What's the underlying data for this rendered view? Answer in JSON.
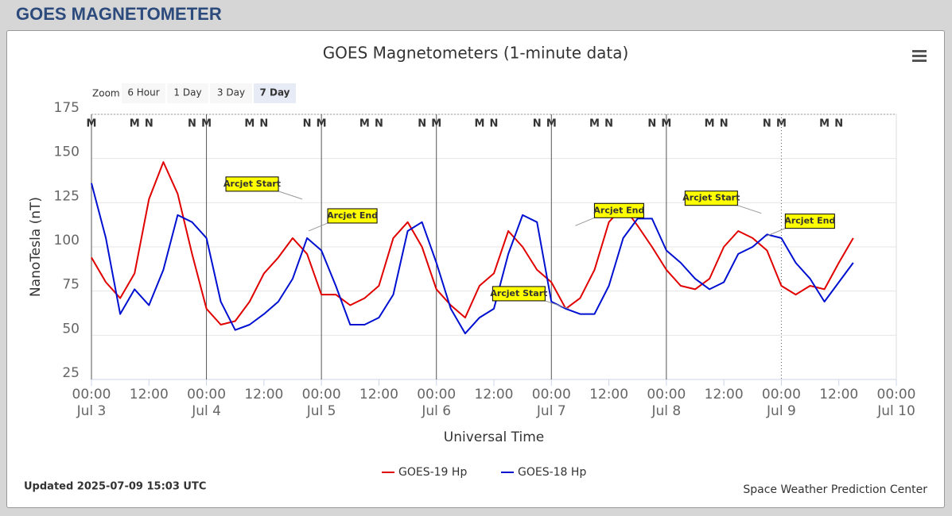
{
  "header": {
    "title": "GOES MAGNETOMETER"
  },
  "chart_data": {
    "type": "line",
    "title": "GOES Magnetometers (1-minute data)",
    "zoom": {
      "label": "Zoom",
      "buttons": [
        "6 Hour",
        "1 Day",
        "3 Day",
        "7 Day"
      ],
      "selected": 3
    },
    "y_label": "NanoTesla (nT)",
    "x_label": "Universal Time",
    "ylim": [
      25,
      175
    ],
    "yticks": [
      25,
      50,
      75,
      100,
      125,
      150,
      175
    ],
    "grid": true,
    "xlim": [
      "Jul 3 00:00",
      "Jul 10 00:00"
    ],
    "xticks": [
      {
        "value": "Jul 3 00:00",
        "label": [
          "00:00",
          "Jul 3"
        ]
      },
      {
        "value": "Jul 3 12:00",
        "label": "12:00"
      },
      {
        "value": "Jul 4 00:00",
        "label": [
          "00:00",
          "Jul 4"
        ]
      },
      {
        "value": "Jul 4 12:00",
        "label": "12:00"
      },
      {
        "value": "Jul 5 00:00",
        "label": [
          "00:00",
          "Jul 5"
        ]
      },
      {
        "value": "Jul 5 12:00",
        "label": "12:00"
      },
      {
        "value": "Jul 6 00:00",
        "label": [
          "00:00",
          "Jul 6"
        ]
      },
      {
        "value": "Jul 6 12:00",
        "label": "12:00"
      },
      {
        "value": "Jul 7 00:00",
        "label": [
          "00:00",
          "Jul 7"
        ]
      },
      {
        "value": "Jul 7 12:00",
        "label": "12:00"
      },
      {
        "value": "Jul 8 00:00",
        "label": [
          "00:00",
          "Jul 8"
        ]
      },
      {
        "value": "Jul 8 12:00",
        "label": "12:00"
      },
      {
        "value": "Jul 9 00:00",
        "label": [
          "00:00",
          "Jul 9"
        ]
      },
      {
        "value": "Jul 9 12:00",
        "label": "12:00"
      },
      {
        "value": "Jul 10 00:00",
        "label": [
          "00:00",
          "Jul 10"
        ]
      }
    ],
    "plot_lines": [
      {
        "x": "Jul 4 00:00",
        "style": "solid"
      },
      {
        "x": "Jul 5 00:00",
        "style": "solid"
      },
      {
        "x": "Jul 6 00:00",
        "style": "solid"
      },
      {
        "x": "Jul 7 00:00",
        "style": "solid"
      },
      {
        "x": "Jul 8 00:00",
        "style": "solid"
      },
      {
        "x": "Jul 9 00:00",
        "style": "dotted"
      }
    ],
    "x": [
      "Jul 3 00:00",
      "Jul 3 03:00",
      "Jul 3 06:00",
      "Jul 3 09:00",
      "Jul 3 12:00",
      "Jul 3 15:00",
      "Jul 3 18:00",
      "Jul 3 21:00",
      "Jul 4 00:00",
      "Jul 4 03:00",
      "Jul 4 06:00",
      "Jul 4 09:00",
      "Jul 4 12:00",
      "Jul 4 15:00",
      "Jul 4 18:00",
      "Jul 4 21:00",
      "Jul 5 00:00",
      "Jul 5 03:00",
      "Jul 5 06:00",
      "Jul 5 09:00",
      "Jul 5 12:00",
      "Jul 5 15:00",
      "Jul 5 18:00",
      "Jul 5 21:00",
      "Jul 6 00:00",
      "Jul 6 03:00",
      "Jul 6 06:00",
      "Jul 6 09:00",
      "Jul 6 12:00",
      "Jul 6 15:00",
      "Jul 6 18:00",
      "Jul 6 21:00",
      "Jul 7 00:00",
      "Jul 7 03:00",
      "Jul 7 06:00",
      "Jul 7 09:00",
      "Jul 7 12:00",
      "Jul 7 15:00",
      "Jul 7 18:00",
      "Jul 7 21:00",
      "Jul 8 00:00",
      "Jul 8 03:00",
      "Jul 8 06:00",
      "Jul 8 09:00",
      "Jul 8 12:00",
      "Jul 8 15:00",
      "Jul 8 18:00",
      "Jul 8 21:00",
      "Jul 9 00:00",
      "Jul 9 03:00",
      "Jul 9 06:00",
      "Jul 9 09:00",
      "Jul 9 12:00",
      "Jul 9 15:00"
    ],
    "series": [
      {
        "name": "GOES-19 Hp",
        "color": "#e00000",
        "values": [
          94,
          80,
          71,
          85,
          127,
          148,
          130,
          96,
          65,
          56,
          58,
          69,
          85,
          94,
          105,
          96,
          73,
          73,
          67,
          71,
          78,
          105,
          114,
          100,
          76,
          67,
          60,
          78,
          85,
          109,
          100,
          87,
          80,
          65,
          71,
          87,
          114,
          123,
          112,
          100,
          87,
          78,
          76,
          82,
          100,
          109,
          105,
          98,
          78,
          73,
          78,
          76,
          91,
          105
        ],
        "markers": [
          {
            "x": "Jul 3 00:00",
            "label": "M"
          },
          {
            "x": "Jul 3 12:00",
            "label": "N"
          },
          {
            "x": "Jul 4 00:00",
            "label": "M"
          },
          {
            "x": "Jul 4 12:00",
            "label": "N"
          },
          {
            "x": "Jul 5 00:00",
            "label": "M"
          },
          {
            "x": "Jul 5 12:00",
            "label": "N"
          },
          {
            "x": "Jul 6 00:00",
            "label": "M"
          },
          {
            "x": "Jul 6 12:00",
            "label": "N"
          },
          {
            "x": "Jul 7 00:00",
            "label": "M"
          },
          {
            "x": "Jul 7 12:00",
            "label": "N"
          },
          {
            "x": "Jul 8 00:00",
            "label": "M"
          },
          {
            "x": "Jul 8 12:00",
            "label": "N"
          },
          {
            "x": "Jul 9 00:00",
            "label": "M"
          },
          {
            "x": "Jul 9 12:00",
            "label": "N"
          }
        ]
      },
      {
        "name": "GOES-18 Hp",
        "color": "#0010d0",
        "values": [
          136,
          105,
          62,
          76,
          67,
          87,
          118,
          114,
          105,
          69,
          53,
          56,
          62,
          69,
          82,
          105,
          98,
          78,
          56,
          56,
          60,
          73,
          109,
          114,
          91,
          65,
          51,
          60,
          65,
          96,
          118,
          114,
          69,
          65,
          62,
          62,
          78,
          105,
          116,
          116,
          98,
          91,
          82,
          76,
          80,
          96,
          100,
          107,
          105,
          91,
          82,
          69,
          80,
          91
        ],
        "markers": [
          {
            "x": "Jul 3 09:00",
            "label": "M"
          },
          {
            "x": "Jul 3 21:00",
            "label": "N"
          },
          {
            "x": "Jul 4 09:00",
            "label": "M"
          },
          {
            "x": "Jul 4 21:00",
            "label": "N"
          },
          {
            "x": "Jul 5 09:00",
            "label": "M"
          },
          {
            "x": "Jul 5 21:00",
            "label": "N"
          },
          {
            "x": "Jul 6 09:00",
            "label": "M"
          },
          {
            "x": "Jul 6 21:00",
            "label": "N"
          },
          {
            "x": "Jul 7 09:00",
            "label": "M"
          },
          {
            "x": "Jul 7 21:00",
            "label": "N"
          },
          {
            "x": "Jul 8 09:00",
            "label": "M"
          },
          {
            "x": "Jul 8 21:00",
            "label": "N"
          },
          {
            "x": "Jul 9 09:00",
            "label": "M"
          }
        ]
      }
    ],
    "annotations": [
      {
        "x": "Jul 4 20:00",
        "y": 127,
        "label": "Arcjet Start"
      },
      {
        "x": "Jul 4 21:20",
        "y": 109,
        "label": "Arcjet End"
      },
      {
        "x": "Jul 7 03:40",
        "y": 65,
        "label": "Arcjet Start"
      },
      {
        "x": "Jul 7 05:00",
        "y": 112,
        "label": "Arcjet End"
      },
      {
        "x": "Jul 8 19:50",
        "y": 119,
        "label": "Arcjet Start"
      },
      {
        "x": "Jul 8 20:50",
        "y": 106,
        "label": "Arcjet End"
      }
    ],
    "footer": {
      "updated": "Updated 2025-07-09 15:03 UTC",
      "credit": "Space Weather Prediction Center"
    }
  }
}
